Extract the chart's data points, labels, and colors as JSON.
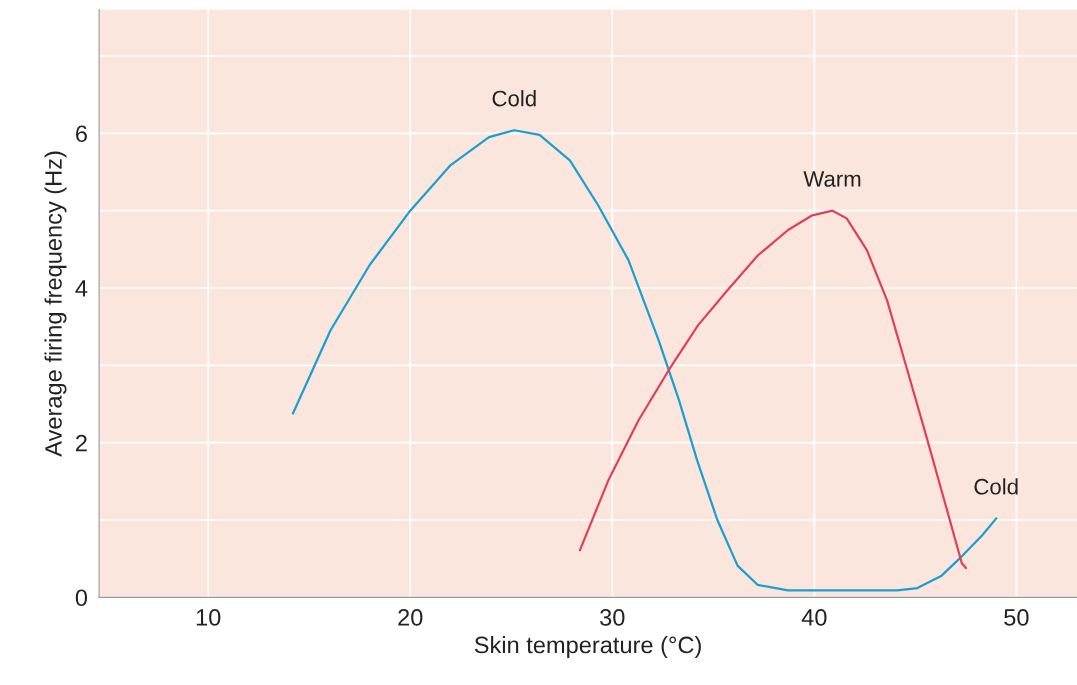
{
  "chart_data": {
    "type": "line",
    "xlabel": "Skin temperature (°C)",
    "ylabel": "Average firing frequency (Hz)",
    "xlim": [
      4.6,
      53
    ],
    "xticks": [
      10,
      20,
      30,
      40,
      50
    ],
    "ylim": [
      0,
      7.6
    ],
    "yticks": [
      0,
      {
        "value": 1,
        "label": null
      },
      2,
      {
        "value": 3,
        "label": null
      },
      4,
      {
        "value": 5,
        "label": null
      },
      6,
      {
        "value": 7,
        "label": null
      }
    ],
    "grid": true,
    "marker": "none",
    "line_style": "solid",
    "series": [
      {
        "color": "#1a9fd0",
        "x": [
          14.2,
          16.05,
          18.0,
          20.0,
          22.0,
          23.9,
          25.15,
          26.4,
          27.9,
          29.3,
          30.8,
          32.3,
          33.3,
          34.2,
          35.2,
          36.2,
          37.2,
          38.7,
          44.1,
          45.1,
          46.3,
          47.3,
          48.3,
          49.0
        ],
        "values": [
          2.38,
          3.45,
          4.3,
          5.0,
          5.59,
          5.95,
          6.04,
          5.98,
          5.65,
          5.07,
          4.36,
          3.32,
          2.55,
          1.77,
          1.0,
          0.41,
          0.16,
          0.09,
          0.09,
          0.12,
          0.28,
          0.53,
          0.8,
          1.02
        ]
      },
      {
        "color": "#e0405a",
        "x": [
          28.4,
          29.8,
          31.3,
          32.8,
          34.25,
          35.7,
          37.2,
          38.7,
          39.9,
          40.9,
          41.6,
          42.6,
          43.6,
          44.6,
          45.6,
          46.5,
          47.3,
          47.5
        ],
        "values": [
          0.61,
          1.51,
          2.29,
          2.94,
          3.52,
          3.97,
          4.42,
          4.75,
          4.94,
          5.0,
          4.9,
          4.49,
          3.84,
          2.94,
          2.03,
          1.19,
          0.44,
          0.38
        ]
      }
    ],
    "annotations": [
      {
        "text": "Cold",
        "x": 25.15,
        "y": 6.04
      },
      {
        "text": "Warm",
        "x": 40.9,
        "y": 5.0
      },
      {
        "text": "Cold",
        "x": 49.0,
        "y": 1.02
      }
    ]
  }
}
